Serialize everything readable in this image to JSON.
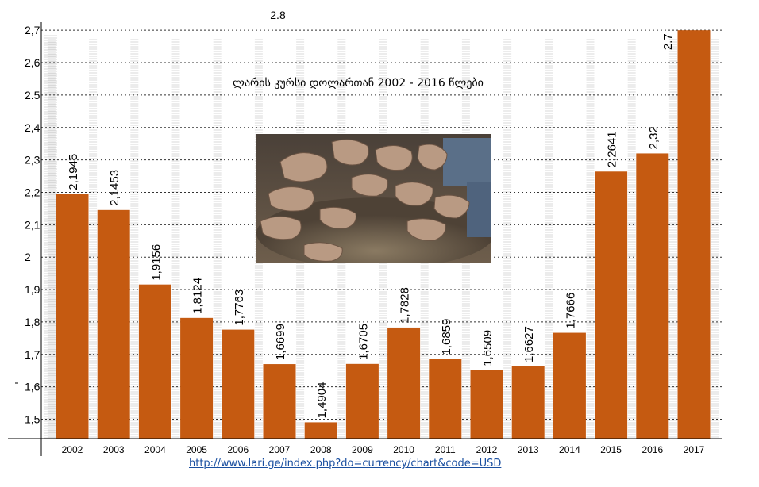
{
  "chart_data": {
    "type": "bar",
    "title": "ლარის კურსი დოლართან  2002 -  2016 წლები",
    "categories": [
      "2002",
      "2003",
      "2004",
      "2005",
      "2006",
      "2007",
      "2008",
      "2009",
      "2010",
      "2011",
      "2012",
      "2013",
      "2014",
      "2015",
      "2016",
      "2017"
    ],
    "values": [
      2.1945,
      2.1453,
      1.9156,
      1.8124,
      1.7763,
      1.6699,
      1.4904,
      1.6705,
      1.7828,
      1.6859,
      1.6509,
      1.6627,
      1.7666,
      2.2641,
      2.32,
      2.7
    ],
    "value_labels": [
      "2,1945",
      "2,1453",
      "1,9156",
      "1,8124",
      "1,7763",
      "1,6699",
      "1,4904",
      "1,6705",
      "1,7828",
      "1,6859",
      "1,6509",
      "1,6627",
      "1,7666",
      "2,2641",
      "2,32",
      "2.7"
    ],
    "yticks": [
      {
        "value": 2.7,
        "label": "2,7"
      },
      {
        "value": 2.6,
        "label": "2,6"
      },
      {
        "value": 2.5,
        "label": "2.5"
      },
      {
        "value": 2.4,
        "label": "2,4"
      },
      {
        "value": 2.3,
        "label": "2,3"
      },
      {
        "value": 2.2,
        "label": "2,2"
      },
      {
        "value": 2.1,
        "label": "2,1"
      },
      {
        "value": 2.0,
        "label": "2"
      },
      {
        "value": 1.9,
        "label": "1,9"
      },
      {
        "value": 1.8,
        "label": "1,8"
      },
      {
        "value": 1.7,
        "label": "1,7"
      },
      {
        "value": 1.6,
        "label": "1,6"
      },
      {
        "value": 1.5,
        "label": "1,5"
      }
    ],
    "top_annotation": "2.8",
    "ylim": [
      1.44,
      2.72
    ],
    "bar_color": "#c55a11",
    "grid": true,
    "xlabel": "",
    "ylabel": ""
  },
  "source": {
    "url_text": "http://www.lari.ge/index.php?do=currency/chart&code=USD"
  },
  "photo": {
    "subject": "outstretched-hands-photo"
  }
}
